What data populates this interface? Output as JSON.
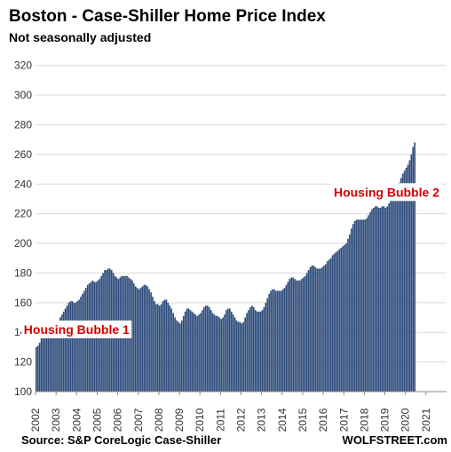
{
  "chart_data": {
    "type": "bar",
    "title": "Boston - Case-Shiller Home Price Index",
    "subtitle": "Not seasonally adjusted",
    "ylim": [
      100,
      330
    ],
    "yticks": [
      100,
      120,
      140,
      160,
      180,
      200,
      220,
      240,
      260,
      280,
      300,
      320
    ],
    "years": [
      "2002",
      "2003",
      "2004",
      "2005",
      "2006",
      "2007",
      "2008",
      "2009",
      "2010",
      "2011",
      "2012",
      "2013",
      "2014",
      "2015",
      "2016",
      "2017",
      "2018",
      "2019",
      "2020",
      "2021"
    ],
    "grid": true,
    "bar_color": "#2c4a7a",
    "annotations": [
      {
        "text": "Housing Bubble 1",
        "at_month": "2004-01"
      },
      {
        "text": "Housing Bubble 2",
        "at_month": "2019-02"
      }
    ],
    "source": "Source: S&P CoreLogic Case-Shiller",
    "brand": "WOLFSTREET.com",
    "start_month": "2002-01",
    "values": [
      130,
      131,
      133,
      136,
      139,
      142,
      144,
      146,
      147,
      148,
      147,
      146,
      147,
      148,
      150,
      152,
      154,
      156,
      158,
      160,
      161,
      161,
      160,
      160,
      161,
      162,
      164,
      166,
      168,
      170,
      172,
      173,
      174,
      175,
      174,
      174,
      175,
      176,
      178,
      180,
      182,
      182,
      183,
      183,
      182,
      180,
      178,
      177,
      176,
      177,
      178,
      178,
      178,
      178,
      177,
      176,
      175,
      173,
      171,
      170,
      169,
      170,
      171,
      172,
      172,
      171,
      169,
      167,
      164,
      161,
      159,
      159,
      158,
      159,
      161,
      162,
      162,
      160,
      158,
      156,
      153,
      150,
      148,
      147,
      146,
      148,
      151,
      154,
      156,
      156,
      155,
      154,
      153,
      152,
      151,
      152,
      153,
      155,
      157,
      158,
      158,
      157,
      155,
      153,
      152,
      151,
      151,
      150,
      149,
      150,
      152,
      155,
      156,
      156,
      154,
      152,
      150,
      148,
      147,
      147,
      146,
      147,
      150,
      153,
      155,
      157,
      158,
      157,
      155,
      154,
      154,
      154,
      155,
      157,
      160,
      163,
      166,
      168,
      169,
      169,
      168,
      168,
      168,
      168,
      169,
      170,
      172,
      174,
      176,
      177,
      177,
      176,
      175,
      175,
      175,
      176,
      177,
      178,
      180,
      182,
      184,
      185,
      185,
      184,
      183,
      183,
      183,
      184,
      185,
      186,
      188,
      189,
      190,
      192,
      193,
      194,
      195,
      196,
      197,
      198,
      199,
      200,
      203,
      206,
      210,
      213,
      215,
      216,
      216,
      216,
      216,
      216,
      216,
      217,
      219,
      221,
      223,
      224,
      225,
      225,
      224,
      224,
      225,
      225,
      224,
      225,
      227,
      229,
      231,
      233,
      235,
      238,
      241,
      244,
      247,
      249,
      251,
      253,
      256,
      260,
      265,
      268
    ]
  }
}
